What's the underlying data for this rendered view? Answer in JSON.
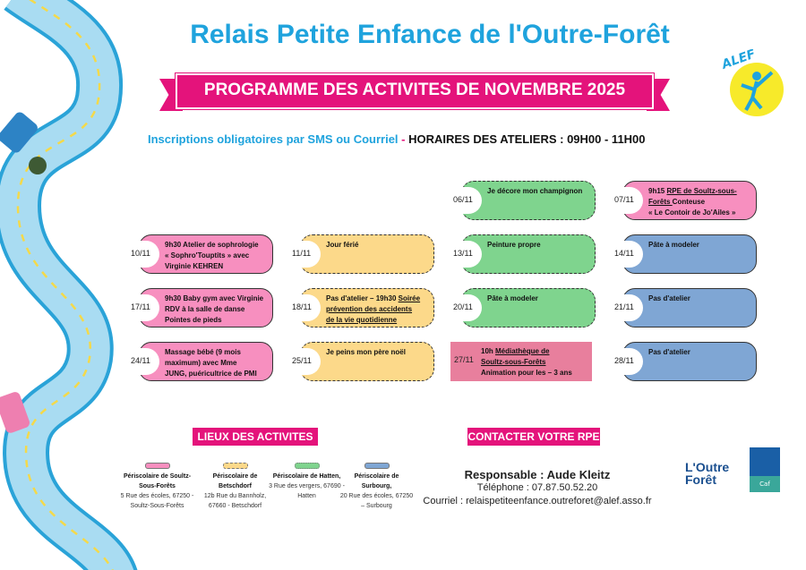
{
  "header": {
    "title": "Relais Petite Enfance de l'Outre-Forêt",
    "banner": "PROGRAMME DES ACTIVITES DE NOVEMBRE 2025",
    "subline_left": "Inscriptions obligatoires par SMS ou Courriel",
    "subline_sep": " - ",
    "subline_right": "HORAIRES DES ATELIERS : 09H00 - 11H00",
    "logo_alef": "ALEF"
  },
  "colors": {
    "pink": "#f78fbf",
    "yellow": "#fcd98a",
    "green": "#7fd48e",
    "blue": "#7fa6d4",
    "rose": "#e87f9d",
    "magenta": "#e4137b",
    "cyan": "#1fa3dd"
  },
  "schedule": [
    [
      null,
      null,
      {
        "date": "06/11",
        "text": "Je décore mon champignon",
        "color": "green",
        "border": "dashed"
      },
      {
        "date": "07/11",
        "text": "9h15 <u>RPE de Soultz-sous-\nForêts </u>Conteuse\n« Le Contoir de Jo'Ailes »",
        "color": "pink",
        "border": "solid"
      }
    ],
    [
      {
        "date": "10/11",
        "text": "9h30 Atelier de sophrologie\n« Sophro'Touptits » avec\nVirginie KEHREN",
        "color": "pink",
        "border": "solid"
      },
      {
        "date": "11/11",
        "text": "Jour férié",
        "color": "yellow",
        "border": "dashed"
      },
      {
        "date": "13/11",
        "text": "Peinture propre",
        "color": "green",
        "border": "dashed"
      },
      {
        "date": "14/11",
        "text": "Pâte à modeler",
        "color": "blue",
        "border": "solid"
      }
    ],
    [
      {
        "date": "17/11",
        "text": "9h30 Baby gym avec Virginie\nRDV à la salle de danse\nPointes de pieds",
        "color": "pink",
        "border": "solid"
      },
      {
        "date": "18/11",
        "text": "Pas d'atelier – 19h30 <u>Soirée\nprévention des accidents\nde la vie quotidienne</u>",
        "color": "yellow",
        "border": "dashed"
      },
      {
        "date": "20/11",
        "text": "Pâte à modeler",
        "color": "green",
        "border": "dashed"
      },
      {
        "date": "21/11",
        "text": "Pas d'atelier",
        "color": "blue",
        "border": "solid"
      }
    ],
    [
      {
        "date": "24/11",
        "text": "Massage bébé (9 mois\nmaximum) avec Mme\nJUNG, puéricultrice de PMI",
        "color": "pink",
        "border": "solid"
      },
      {
        "date": "25/11",
        "text": "Je peins mon père noël",
        "color": "yellow",
        "border": "dashed"
      },
      {
        "date": "27/11",
        "text": "10h <u>Médiathèque de\nSoultz-sous-Forêts</u>\nAnimation pour les – 3 ans",
        "color": "rose",
        "border": "rect"
      },
      {
        "date": "28/11",
        "text": "Pas d'atelier",
        "color": "blue",
        "border": "solid"
      }
    ]
  ],
  "venues": {
    "title": "LIEUX DES ACTIVITES",
    "items": [
      {
        "name": "Périscolaire de Soultz-Sous-Forêts",
        "address": "5 Rue des écoles, 67250 - Soultz-Sous-Forêts",
        "color": "pink",
        "border": "solid"
      },
      {
        "name": "Périscolaire de Betschdorf",
        "address": "12b Rue du Bannholz, 67660 - Betschdorf",
        "color": "yellow",
        "border": "dashed"
      },
      {
        "name": "Périscolaire de Hatten,",
        "address": "3 Rue des vergers, 67690 - Hatten",
        "color": "green",
        "border": "dotted"
      },
      {
        "name": "Périscolaire de Surbourg,",
        "address": "20 Rue des écoles, 67250 – Surbourg",
        "color": "blue",
        "border": "solid"
      }
    ]
  },
  "contact": {
    "title": "CONTACTER VOTRE RPE",
    "responsable": "Responsable : Aude Kleitz",
    "phone": "Téléphone : 07.87.50.52.20",
    "email": "Courriel :  relaispetiteenfance.outreforet@alef.asso.fr"
  },
  "logos": {
    "cc": "L'Outre Forêt",
    "caf": "Caf"
  }
}
